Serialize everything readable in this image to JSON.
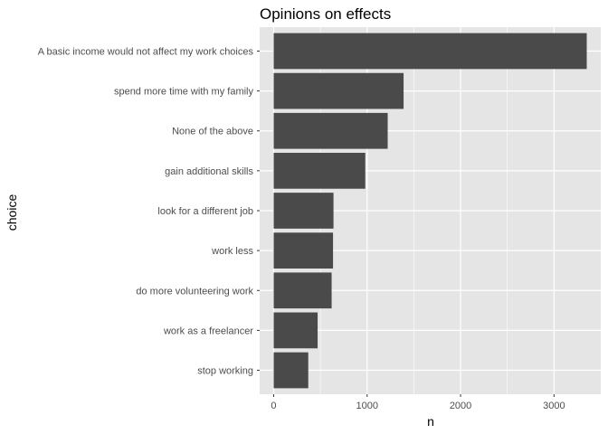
{
  "chart_data": {
    "type": "bar",
    "orientation": "horizontal",
    "title": "Opinions on effects",
    "xlabel": "n",
    "ylabel": "choice",
    "xlim": [
      -150,
      3500
    ],
    "xticks": [
      0,
      1000,
      2000,
      3000
    ],
    "grid": true,
    "colors": {
      "panel": "#e5e5e5",
      "grid": "#ffffff",
      "bar": "#4a4a4a",
      "tick_text": "#4d4d4d"
    },
    "categories": [
      "A basic income would not affect my work choices",
      "spend more time with my family",
      "None of the above",
      "gain additional skills",
      "look for a different job",
      "work less",
      "do more volunteering work",
      "work as a freelancer",
      "stop working"
    ],
    "values": [
      3350,
      1390,
      1220,
      980,
      640,
      635,
      620,
      470,
      370
    ]
  }
}
